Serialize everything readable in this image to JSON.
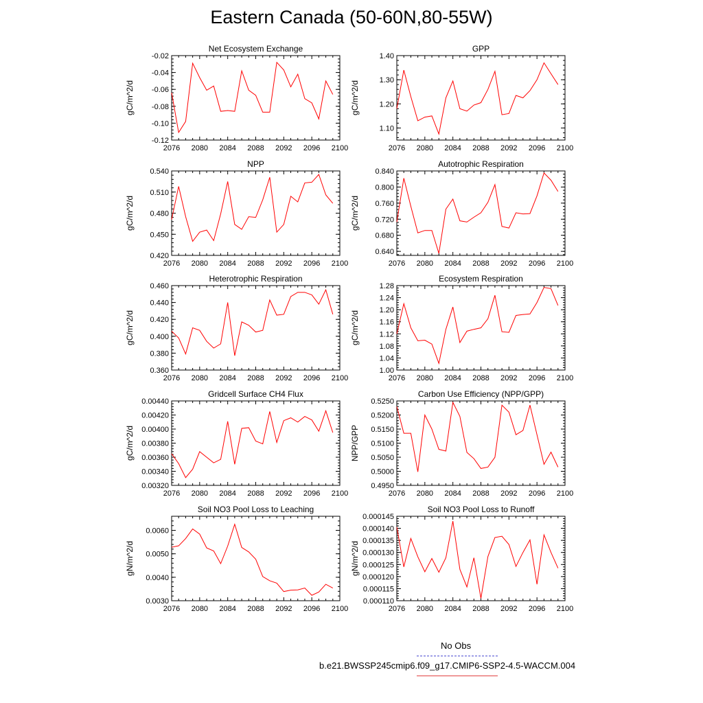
{
  "title": "Eastern Canada (50-60N,80-55W)",
  "legend": {
    "entries": [
      {
        "label": "No Obs",
        "color": "#4a4ad0",
        "style": "dashed"
      },
      {
        "label": "b.e21.BWSSP245cmip6.f09_g17.CMIP6-SSP2-4.5-WACCM.004",
        "color": "#e04040",
        "style": "solid"
      }
    ]
  },
  "chart_data": [
    {
      "type": "line",
      "title": "Net Ecosystem Exchange",
      "ylabel": "gC/m^2/d",
      "xlim": [
        2076,
        2100
      ],
      "xticks": [
        "2076",
        "2080",
        "2084",
        "2088",
        "2092",
        "2096",
        "2100"
      ],
      "ylim": [
        -0.12,
        -0.02
      ],
      "yticks": [
        "-0.12",
        "-0.10",
        "-0.08",
        "-0.06",
        "-0.04",
        "-0.02"
      ],
      "series": [
        {
          "color": "#ff0000",
          "x": [
            2076,
            2077,
            2078,
            2079,
            2080,
            2081,
            2082,
            2083,
            2084,
            2085,
            2086,
            2087,
            2088,
            2089,
            2090,
            2091,
            2092,
            2093,
            2094,
            2095,
            2096,
            2097,
            2098,
            2099
          ],
          "y": [
            -0.064,
            -0.111,
            -0.098,
            -0.029,
            -0.046,
            -0.061,
            -0.056,
            -0.086,
            -0.085,
            -0.086,
            -0.038,
            -0.061,
            -0.067,
            -0.087,
            -0.087,
            -0.028,
            -0.037,
            -0.057,
            -0.042,
            -0.071,
            -0.076,
            -0.095,
            -0.05,
            -0.066
          ]
        }
      ]
    },
    {
      "type": "line",
      "title": "GPP",
      "ylabel": "gC/m^2/d",
      "xlim": [
        2076,
        2100
      ],
      "xticks": [
        "2076",
        "2080",
        "2084",
        "2088",
        "2092",
        "2096",
        "2100"
      ],
      "ylim": [
        1.05,
        1.4
      ],
      "yticks": [
        "1.10",
        "1.20",
        "1.30",
        "1.40"
      ],
      "series": [
        {
          "color": "#ff0000",
          "x": [
            2076,
            2077,
            2078,
            2079,
            2080,
            2081,
            2082,
            2083,
            2084,
            2085,
            2086,
            2087,
            2088,
            2089,
            2090,
            2091,
            2092,
            2093,
            2094,
            2095,
            2096,
            2097,
            2098,
            2099
          ],
          "y": [
            1.18,
            1.34,
            1.23,
            1.13,
            1.145,
            1.15,
            1.075,
            1.225,
            1.295,
            1.18,
            1.17,
            1.195,
            1.205,
            1.26,
            1.335,
            1.155,
            1.16,
            1.235,
            1.225,
            1.255,
            1.3,
            1.37,
            1.325,
            1.28
          ]
        }
      ]
    },
    {
      "type": "line",
      "title": "NPP",
      "ylabel": "gC/m^2/d",
      "xlim": [
        2076,
        2100
      ],
      "xticks": [
        "2076",
        "2080",
        "2084",
        "2088",
        "2092",
        "2096",
        "2100"
      ],
      "ylim": [
        0.42,
        0.54
      ],
      "yticks": [
        "0.420",
        "0.450",
        "0.480",
        "0.510",
        "0.540"
      ],
      "series": [
        {
          "color": "#ff0000",
          "x": [
            2076,
            2077,
            2078,
            2079,
            2080,
            2081,
            2082,
            2083,
            2084,
            2085,
            2086,
            2087,
            2088,
            2089,
            2090,
            2091,
            2092,
            2093,
            2094,
            2095,
            2096,
            2097,
            2098,
            2099
          ],
          "y": [
            0.471,
            0.518,
            0.475,
            0.44,
            0.453,
            0.456,
            0.441,
            0.479,
            0.525,
            0.464,
            0.457,
            0.475,
            0.474,
            0.499,
            0.531,
            0.453,
            0.464,
            0.504,
            0.496,
            0.523,
            0.524,
            0.535,
            0.506,
            0.494
          ]
        }
      ]
    },
    {
      "type": "line",
      "title": "Autotrophic Respiration",
      "ylabel": "gC/m^2/d",
      "xlim": [
        2076,
        2100
      ],
      "xticks": [
        "2076",
        "2080",
        "2084",
        "2088",
        "2092",
        "2096",
        "2100"
      ],
      "ylim": [
        0.63,
        0.84
      ],
      "yticks": [
        "0.640",
        "0.680",
        "0.720",
        "0.760",
        "0.800",
        "0.840"
      ],
      "series": [
        {
          "color": "#ff0000",
          "x": [
            2076,
            2077,
            2078,
            2079,
            2080,
            2081,
            2082,
            2083,
            2084,
            2085,
            2086,
            2087,
            2088,
            2089,
            2090,
            2091,
            2092,
            2093,
            2094,
            2095,
            2096,
            2097,
            2098,
            2099
          ],
          "y": [
            0.713,
            0.822,
            0.752,
            0.686,
            0.692,
            0.692,
            0.635,
            0.745,
            0.77,
            0.716,
            0.713,
            0.725,
            0.736,
            0.762,
            0.806,
            0.702,
            0.698,
            0.736,
            0.733,
            0.734,
            0.778,
            0.835,
            0.817,
            0.789
          ]
        }
      ]
    },
    {
      "type": "line",
      "title": "Heterotrophic Respiration",
      "ylabel": "gC/m^2/d",
      "xlim": [
        2076,
        2100
      ],
      "xticks": [
        "2076",
        "2080",
        "2084",
        "2088",
        "2092",
        "2096",
        "2100"
      ],
      "ylim": [
        0.36,
        0.46
      ],
      "yticks": [
        "0.360",
        "0.380",
        "0.400",
        "0.420",
        "0.440",
        "0.460"
      ],
      "series": [
        {
          "color": "#ff0000",
          "x": [
            2076,
            2077,
            2078,
            2079,
            2080,
            2081,
            2082,
            2083,
            2084,
            2085,
            2086,
            2087,
            2088,
            2089,
            2090,
            2091,
            2092,
            2093,
            2094,
            2095,
            2096,
            2097,
            2098,
            2099
          ],
          "y": [
            0.406,
            0.398,
            0.379,
            0.41,
            0.407,
            0.394,
            0.386,
            0.391,
            0.44,
            0.377,
            0.417,
            0.413,
            0.405,
            0.407,
            0.443,
            0.425,
            0.426,
            0.447,
            0.452,
            0.452,
            0.449,
            0.438,
            0.455,
            0.426
          ]
        }
      ]
    },
    {
      "type": "line",
      "title": "Ecosystem Respiration",
      "ylabel": "gC/m^2/d",
      "xlim": [
        2076,
        2100
      ],
      "xticks": [
        "2076",
        "2080",
        "2084",
        "2088",
        "2092",
        "2096",
        "2100"
      ],
      "ylim": [
        1.0,
        1.28
      ],
      "yticks": [
        "1.00",
        "1.04",
        "1.08",
        "1.12",
        "1.16",
        "1.20",
        "1.24",
        "1.28"
      ],
      "series": [
        {
          "color": "#ff0000",
          "x": [
            2076,
            2077,
            2078,
            2079,
            2080,
            2081,
            2082,
            2083,
            2084,
            2085,
            2086,
            2087,
            2088,
            2089,
            2090,
            2091,
            2092,
            2093,
            2094,
            2095,
            2096,
            2097,
            2098,
            2099
          ],
          "y": [
            1.12,
            1.22,
            1.14,
            1.097,
            1.099,
            1.086,
            1.022,
            1.135,
            1.209,
            1.091,
            1.129,
            1.135,
            1.14,
            1.17,
            1.248,
            1.127,
            1.125,
            1.181,
            1.184,
            1.186,
            1.224,
            1.274,
            1.27,
            1.214
          ]
        }
      ]
    },
    {
      "type": "line",
      "title": "Gridcell Surface CH4 Flux",
      "ylabel": "gC/m^2/d",
      "xlim": [
        2076,
        2100
      ],
      "xticks": [
        "2076",
        "2080",
        "2084",
        "2088",
        "2092",
        "2096",
        "2100"
      ],
      "ylim": [
        0.0032,
        0.0044
      ],
      "yticks": [
        "0.00320",
        "0.00340",
        "0.00360",
        "0.00380",
        "0.00400",
        "0.00420",
        "0.00440"
      ],
      "series": [
        {
          "color": "#ff0000",
          "x": [
            2076,
            2077,
            2078,
            2079,
            2080,
            2081,
            2082,
            2083,
            2084,
            2085,
            2086,
            2087,
            2088,
            2089,
            2090,
            2091,
            2092,
            2093,
            2094,
            2095,
            2096,
            2097,
            2098,
            2099
          ],
          "y": [
            0.00365,
            0.00351,
            0.00331,
            0.00343,
            0.00368,
            0.0036,
            0.00352,
            0.00357,
            0.00411,
            0.0035,
            0.00401,
            0.00402,
            0.00383,
            0.00379,
            0.00425,
            0.00381,
            0.00412,
            0.00416,
            0.0041,
            0.00418,
            0.00413,
            0.00397,
            0.00426,
            0.00395
          ]
        }
      ]
    },
    {
      "type": "line",
      "title": "Carbon Use Efficiency (NPP/GPP)",
      "ylabel": "NPP/GPP",
      "xlim": [
        2076,
        2100
      ],
      "xticks": [
        "2076",
        "2080",
        "2084",
        "2088",
        "2092",
        "2096",
        "2100"
      ],
      "ylim": [
        0.495,
        0.525
      ],
      "yticks": [
        "0.4950",
        "0.5000",
        "0.5050",
        "0.5100",
        "0.5150",
        "0.5200",
        "0.5250"
      ],
      "series": [
        {
          "color": "#ff0000",
          "x": [
            2076,
            2077,
            2078,
            2079,
            2080,
            2081,
            2082,
            2083,
            2084,
            2085,
            2086,
            2087,
            2088,
            2089,
            2090,
            2091,
            2092,
            2093,
            2094,
            2095,
            2096,
            2097,
            2098,
            2099
          ],
          "y": [
            0.523,
            0.5135,
            0.5135,
            0.4998,
            0.52,
            0.515,
            0.5078,
            0.5072,
            0.5245,
            0.5195,
            0.5067,
            0.5045,
            0.501,
            0.5015,
            0.505,
            0.5235,
            0.521,
            0.513,
            0.5145,
            0.5235,
            0.513,
            0.5025,
            0.5068,
            0.5015
          ]
        }
      ]
    },
    {
      "type": "line",
      "title": "Soil NO3 Pool Loss to Leaching",
      "ylabel": "gN/m^2/d",
      "xlim": [
        2076,
        2100
      ],
      "xticks": [
        "2076",
        "2080",
        "2084",
        "2088",
        "2092",
        "2096",
        "2100"
      ],
      "ylim": [
        0.003,
        0.0066
      ],
      "yticks": [
        "0.0030",
        "0.0040",
        "0.0050",
        "0.0060"
      ],
      "series": [
        {
          "color": "#ff0000",
          "x": [
            2076,
            2077,
            2078,
            2079,
            2080,
            2081,
            2082,
            2083,
            2084,
            2085,
            2086,
            2087,
            2088,
            2089,
            2090,
            2091,
            2092,
            2093,
            2094,
            2095,
            2096,
            2097,
            2098,
            2099
          ],
          "y": [
            0.00528,
            0.00534,
            0.00565,
            0.00606,
            0.00584,
            0.00525,
            0.00512,
            0.00458,
            0.00533,
            0.00626,
            0.00527,
            0.00508,
            0.00477,
            0.00403,
            0.00385,
            0.00375,
            0.00339,
            0.00345,
            0.00346,
            0.00354,
            0.00323,
            0.00337,
            0.0037,
            0.00354
          ]
        }
      ]
    },
    {
      "type": "line",
      "title": "Soil NO3 Pool Loss to Runoff",
      "ylabel": "gN/m^2/d",
      "xlim": [
        2076,
        2100
      ],
      "xticks": [
        "2076",
        "2080",
        "2084",
        "2088",
        "2092",
        "2096",
        "2100"
      ],
      "ylim": [
        0.00011,
        0.000145
      ],
      "yticks": [
        "0.000110",
        "0.000115",
        "0.000120",
        "0.000125",
        "0.000130",
        "0.000135",
        "0.000140",
        "0.000145"
      ],
      "series": [
        {
          "color": "#ff0000",
          "x": [
            2076,
            2077,
            2078,
            2079,
            2080,
            2081,
            2082,
            2083,
            2084,
            2085,
            2086,
            2087,
            2088,
            2089,
            2090,
            2091,
            2092,
            2093,
            2094,
            2095,
            2096,
            2097,
            2098,
            2099
          ],
          "y": [
            0.0001405,
            0.000124,
            0.0001358,
            0.0001282,
            0.000122,
            0.0001275,
            0.0001218,
            0.0001278,
            0.000143,
            0.000123,
            0.0001157,
            0.0001278,
            0.000111,
            0.0001283,
            0.0001362,
            0.0001367,
            0.0001333,
            0.0001242,
            0.00013,
            0.0001352,
            0.0001168,
            0.0001373,
            0.00013,
            0.0001235
          ]
        }
      ]
    }
  ]
}
